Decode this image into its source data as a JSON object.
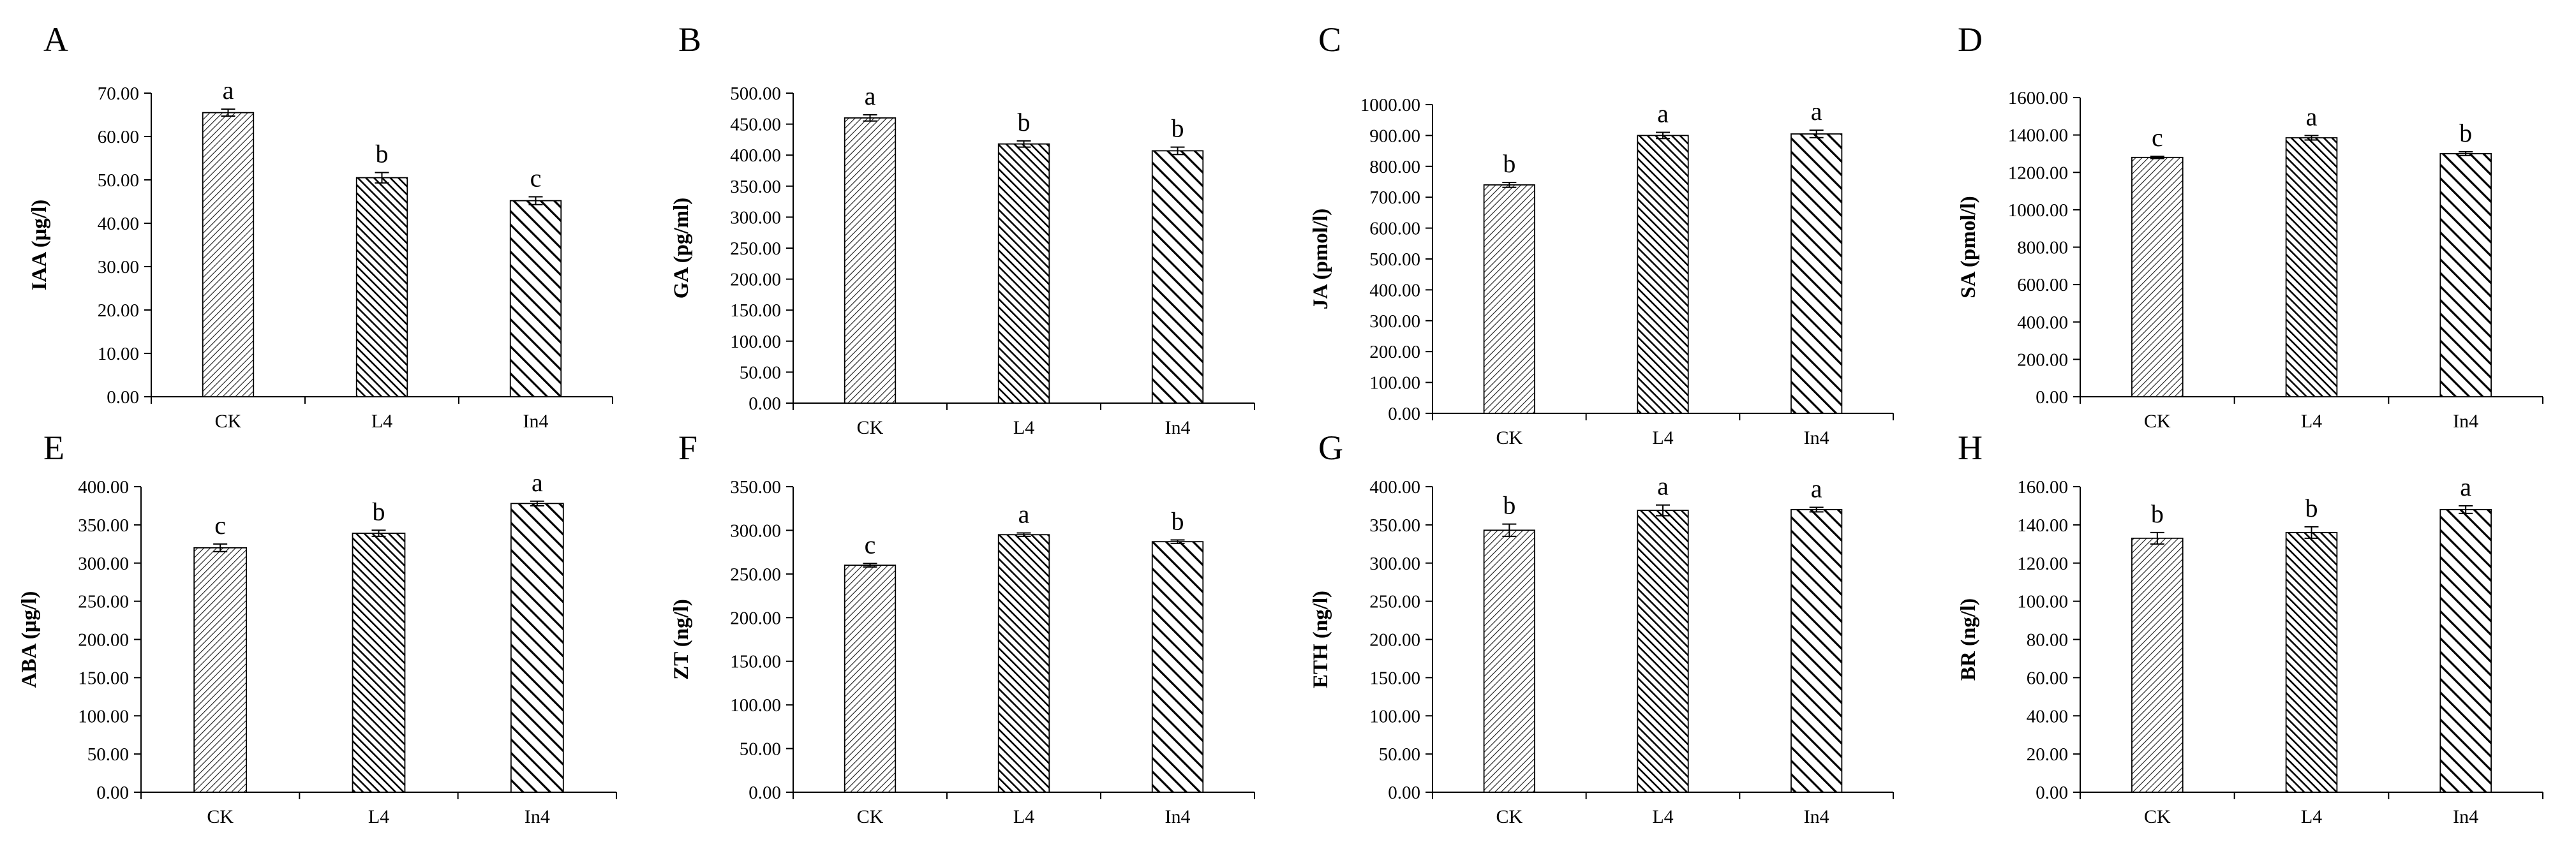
{
  "figure": {
    "categories": [
      "CK",
      "L4",
      "In4"
    ]
  },
  "chart_data": [
    {
      "type": "bar",
      "panel": "A",
      "ylabel": "IAA (μg/l)",
      "categories": [
        "CK",
        "L4",
        "In4"
      ],
      "values": [
        65.5,
        50.5,
        45.2
      ],
      "errors": [
        0.8,
        1.2,
        0.9
      ],
      "letters": [
        "a",
        "b",
        "c"
      ],
      "ylim": [
        0,
        70
      ],
      "yticks": [
        0,
        10,
        20,
        30,
        40,
        50,
        60,
        70
      ],
      "ytick_labels": [
        "0.00",
        "10.00",
        "20.00",
        "30.00",
        "40.00",
        "50.00",
        "60.00",
        "70.00"
      ]
    },
    {
      "type": "bar",
      "panel": "B",
      "ylabel": "GA (pg/ml)",
      "categories": [
        "CK",
        "L4",
        "In4"
      ],
      "values": [
        460,
        418,
        407
      ],
      "errors": [
        5,
        5,
        6
      ],
      "letters": [
        "a",
        "b",
        "b"
      ],
      "ylim": [
        0,
        500
      ],
      "yticks": [
        0,
        50,
        100,
        150,
        200,
        250,
        300,
        350,
        400,
        450,
        500
      ],
      "ytick_labels": [
        "0.00",
        "50.00",
        "100.00",
        "150.00",
        "200.00",
        "250.00",
        "300.00",
        "350.00",
        "400.00",
        "450.00",
        "500.00"
      ]
    },
    {
      "type": "bar",
      "panel": "C",
      "ylabel": "JA (pmol/l)",
      "categories": [
        "CK",
        "L4",
        "In4"
      ],
      "values": [
        740,
        900,
        905
      ],
      "errors": [
        8,
        10,
        12
      ],
      "letters": [
        "b",
        "a",
        "a"
      ],
      "ylim": [
        0,
        1000
      ],
      "yticks": [
        0,
        100,
        200,
        300,
        400,
        500,
        600,
        700,
        800,
        900,
        1000
      ],
      "ytick_labels": [
        "0.00",
        "100.00",
        "200.00",
        "300.00",
        "400.00",
        "500.00",
        "600.00",
        "700.00",
        "800.00",
        "900.00",
        "1000.00"
      ]
    },
    {
      "type": "bar",
      "panel": "D",
      "ylabel": "SA (pmol/l)",
      "categories": [
        "CK",
        "L4",
        "In4"
      ],
      "values": [
        1280,
        1385,
        1300
      ],
      "errors": [
        6,
        12,
        10
      ],
      "letters": [
        "c",
        "a",
        "b"
      ],
      "ylim": [
        0,
        1600
      ],
      "yticks": [
        0,
        200,
        400,
        600,
        800,
        1000,
        1200,
        1400,
        1600
      ],
      "ytick_labels": [
        "0.00",
        "200.00",
        "400.00",
        "600.00",
        "800.00",
        "1000.00",
        "1200.00",
        "1400.00",
        "1600.00"
      ]
    },
    {
      "type": "bar",
      "panel": "E",
      "ylabel": "ABA (μg/l)",
      "categories": [
        "CK",
        "L4",
        "In4"
      ],
      "values": [
        320,
        339,
        378
      ],
      "errors": [
        5,
        4,
        3
      ],
      "letters": [
        "c",
        "b",
        "a"
      ],
      "ylim": [
        0,
        400
      ],
      "yticks": [
        0,
        50,
        100,
        150,
        200,
        250,
        300,
        350,
        400
      ],
      "ytick_labels": [
        "0.00",
        "50.00",
        "100.00",
        "150.00",
        "200.00",
        "250.00",
        "300.00",
        "350.00",
        "400.00"
      ]
    },
    {
      "type": "bar",
      "panel": "F",
      "ylabel": "ZT (ng/l)",
      "categories": [
        "CK",
        "L4",
        "In4"
      ],
      "values": [
        260,
        295,
        287
      ],
      "errors": [
        2,
        2,
        2
      ],
      "letters": [
        "c",
        "a",
        "b"
      ],
      "ylim": [
        0,
        350
      ],
      "yticks": [
        0,
        50,
        100,
        150,
        200,
        250,
        300,
        350
      ],
      "ytick_labels": [
        "0.00",
        "50.00",
        "100.00",
        "150.00",
        "200.00",
        "250.00",
        "300.00",
        "350.00"
      ]
    },
    {
      "type": "bar",
      "panel": "G",
      "ylabel": "ETH (ng/l)",
      "categories": [
        "CK",
        "L4",
        "In4"
      ],
      "values": [
        343,
        369,
        370
      ],
      "errors": [
        8,
        7,
        3
      ],
      "letters": [
        "b",
        "a",
        "a"
      ],
      "ylim": [
        0,
        400
      ],
      "yticks": [
        0,
        50,
        100,
        150,
        200,
        250,
        300,
        350,
        400
      ],
      "ytick_labels": [
        "0.00",
        "50.00",
        "100.00",
        "150.00",
        "200.00",
        "250.00",
        "300.00",
        "350.00",
        "400.00"
      ]
    },
    {
      "type": "bar",
      "panel": "H",
      "ylabel": "BR (ng/l)",
      "categories": [
        "CK",
        "L4",
        "In4"
      ],
      "values": [
        133,
        136,
        148
      ],
      "errors": [
        3,
        3,
        2
      ],
      "letters": [
        "b",
        "b",
        "a"
      ],
      "ylim": [
        0,
        160
      ],
      "yticks": [
        0,
        20,
        40,
        60,
        80,
        100,
        120,
        140,
        160
      ],
      "ytick_labels": [
        "0.00",
        "20.00",
        "40.00",
        "60.00",
        "80.00",
        "100.00",
        "120.00",
        "140.00",
        "160.00"
      ]
    }
  ]
}
